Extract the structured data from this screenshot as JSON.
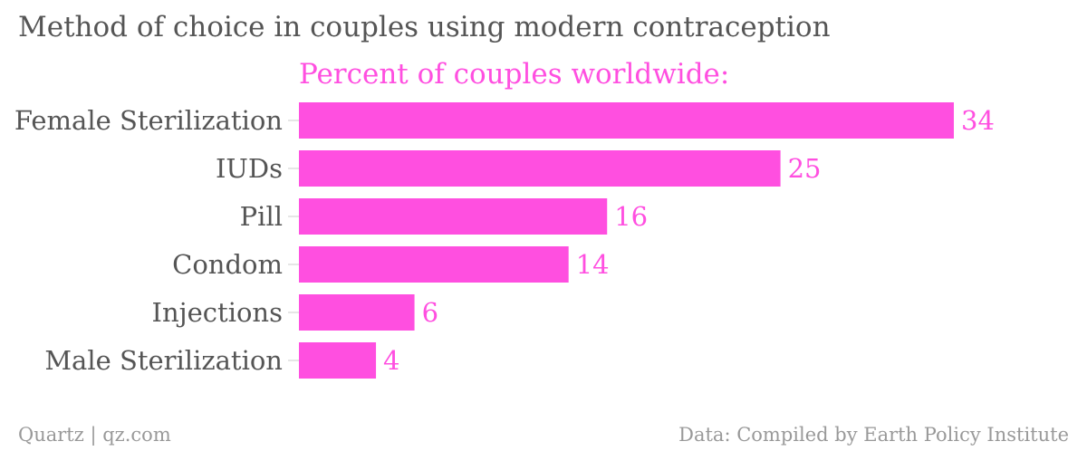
{
  "chart_data": {
    "type": "bar",
    "orientation": "horizontal",
    "title": "Method of choice in couples using modern contraception",
    "subtitle": "Percent of couples worldwide:",
    "categories": [
      "Female Sterilization",
      "IUDs",
      "Pill",
      "Condom",
      "Injections",
      "Male Sterilization"
    ],
    "values": [
      34,
      25,
      16,
      14,
      6,
      4
    ],
    "xlim": [
      0,
      34
    ],
    "grid": false,
    "legend": "none",
    "color": "#ff4fe0"
  },
  "footer": {
    "source_left": "Quartz | qz.com",
    "source_right": "Data: Compiled by Earth Policy Institute"
  },
  "colors": {
    "bar": "#ff4fe0",
    "text": "#555555",
    "footer": "#999999"
  }
}
